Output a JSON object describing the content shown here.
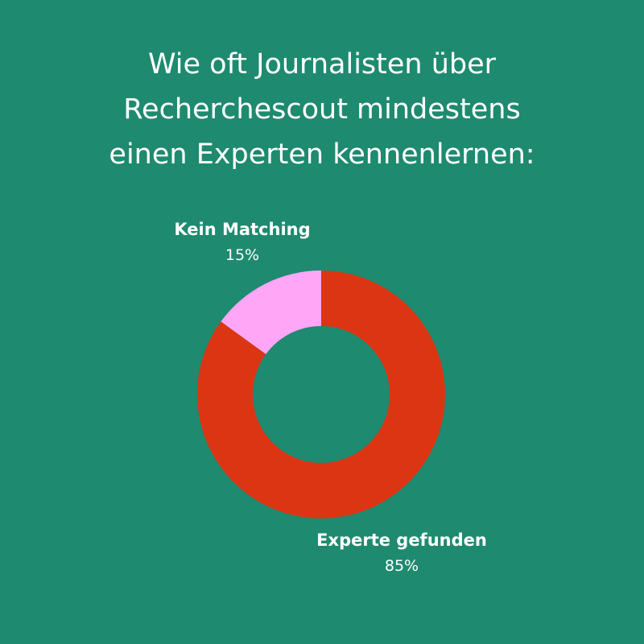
{
  "colors": {
    "background": "#1e8a70",
    "text": "#ffffff"
  },
  "chart_data": {
    "type": "pie",
    "variant": "donut",
    "title_lines": [
      "Wie oft Journalisten über",
      "Recherchescout mindestens",
      "einen Experten kennenlernen:"
    ],
    "slices": [
      {
        "label": "Kein Matching",
        "value": 15,
        "value_label": "15%",
        "color": "#ffa6f7"
      },
      {
        "label": "Experte gefunden",
        "value": 85,
        "value_label": "85%",
        "color": "#dc3514"
      }
    ]
  }
}
